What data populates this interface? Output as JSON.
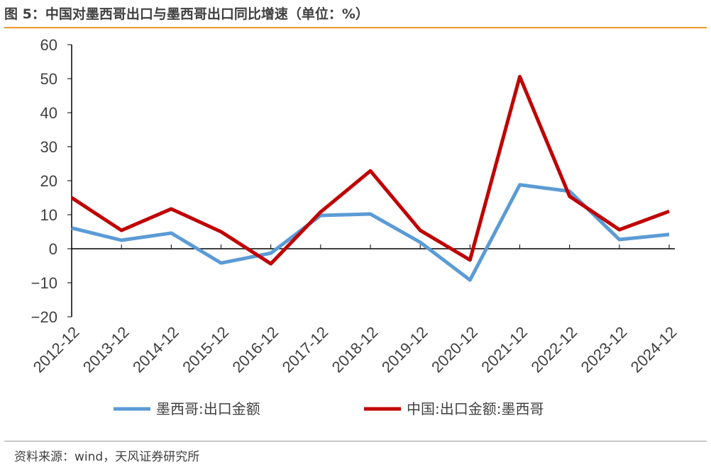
{
  "title": "图 5：中国对墨西哥出口与墨西哥出口同比增速（单位：%）",
  "source": "资料来源：wind，天风证券研究所",
  "chart_data": {
    "type": "line",
    "title": "图 5：中国对墨西哥出口与墨西哥出口同比增速（单位：%）",
    "xlabel": "",
    "ylabel": "",
    "ylim": [
      -20,
      60
    ],
    "yticks": [
      "60",
      "50",
      "40",
      "30",
      "20",
      "10",
      "0",
      "−10",
      "−20"
    ],
    "ytick_values": [
      60,
      50,
      40,
      30,
      20,
      10,
      0,
      -10,
      -20
    ],
    "categories": [
      "2012-12",
      "2013-12",
      "2014-12",
      "2015-12",
      "2016-12",
      "2017-12",
      "2018-12",
      "2019-12",
      "2020-12",
      "2021-12",
      "2022-12",
      "2023-12",
      "2024-12"
    ],
    "legend_position": "bottom",
    "series": [
      {
        "name": "墨西哥:出口金额",
        "color": "#5b9bd5",
        "values": [
          6.1,
          2.5,
          4.6,
          -4.2,
          -1.3,
          9.8,
          10.2,
          1.9,
          -9.2,
          18.8,
          16.9,
          2.7,
          4.2
        ]
      },
      {
        "name": "中国:出口金额:墨西哥",
        "color": "#c00000",
        "values": [
          15.0,
          5.4,
          11.7,
          5.0,
          -4.4,
          10.8,
          22.9,
          5.4,
          -3.3,
          50.6,
          15.4,
          5.6,
          11.0
        ]
      }
    ]
  }
}
